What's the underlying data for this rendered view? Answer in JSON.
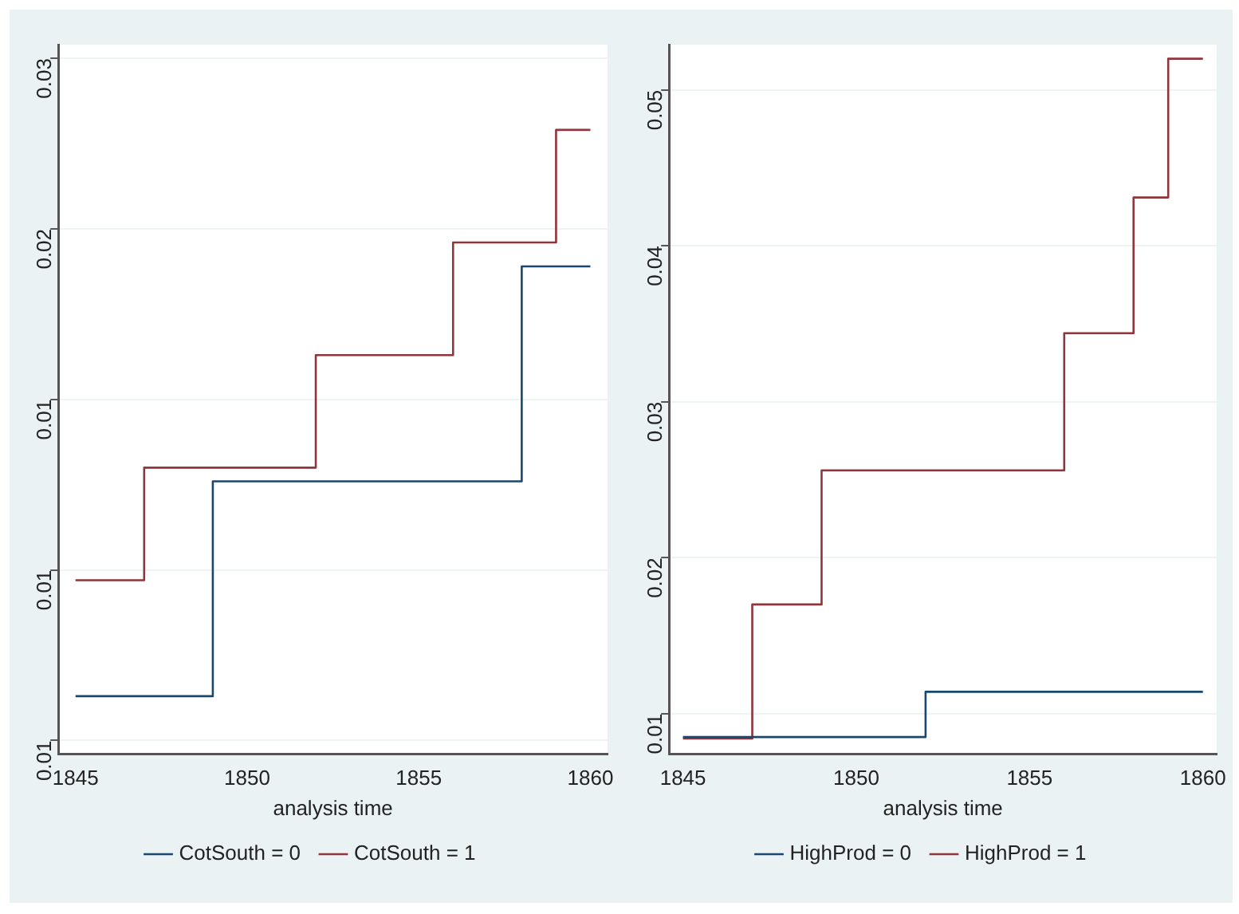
{
  "chart_data": [
    {
      "type": "step",
      "xlabel": "analysis time",
      "xlim": [
        1844.5,
        1860.5
      ],
      "xticks": [
        1845,
        1850,
        1855,
        1860
      ],
      "ylim": [
        0.0046,
        0.0254
      ],
      "yticks": [
        {
          "value": 0.005,
          "label": "0.01"
        },
        {
          "value": 0.01,
          "label": "0.01"
        },
        {
          "value": 0.015,
          "label": "0.01"
        },
        {
          "value": 0.02,
          "label": "0.02"
        },
        {
          "value": 0.025,
          "label": "0.03"
        }
      ],
      "grid": "y",
      "legend": "bottom",
      "series": [
        {
          "name": "CotSouth = 0",
          "color": "#1a476f",
          "x": [
            1845,
            1849,
            1858,
            1860
          ],
          "values": [
            0.0063,
            0.0126,
            0.0189,
            0.0189
          ]
        },
        {
          "name": "CotSouth = 1",
          "color": "#90353b",
          "x": [
            1845,
            1847,
            1852,
            1856,
            1859,
            1860
          ],
          "values": [
            0.0097,
            0.013,
            0.0163,
            0.0196,
            0.0229,
            0.0229
          ]
        }
      ]
    },
    {
      "type": "step",
      "xlabel": "analysis time",
      "xlim": [
        1844.6,
        1860.4
      ],
      "xticks": [
        1845,
        1850,
        1855,
        1860
      ],
      "ylim": [
        0.0074,
        0.0529
      ],
      "yticks": [
        0.01,
        0.02,
        0.03,
        0.04,
        0.05
      ],
      "grid": "y",
      "legend": "bottom",
      "series": [
        {
          "name": "HighProd = 0",
          "color": "#1a476f",
          "x": [
            1845,
            1852,
            1860
          ],
          "values": [
            0.0085,
            0.0114,
            0.0114
          ]
        },
        {
          "name": "HighProd = 1",
          "color": "#90353b",
          "x": [
            1845,
            1847,
            1849,
            1856,
            1858,
            1859,
            1860
          ],
          "values": [
            0.0084,
            0.017,
            0.0256,
            0.0344,
            0.0431,
            0.052,
            0.052
          ]
        }
      ]
    }
  ]
}
